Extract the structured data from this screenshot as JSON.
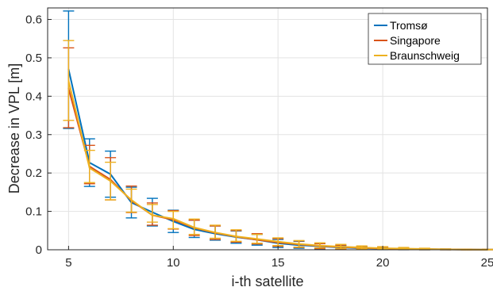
{
  "chart_data": {
    "type": "line",
    "xlabel": "i-th satellite",
    "ylabel": "Decrease in VPL [m]",
    "xlim": [
      4,
      25
    ],
    "ylim": [
      0,
      0.63
    ],
    "xticks": [
      5,
      10,
      15,
      20,
      25
    ],
    "yticks": [
      0,
      0.1,
      0.2,
      0.3,
      0.4,
      0.5,
      0.6
    ],
    "ytick_labels": [
      "0",
      "0.1",
      "0.2",
      "0.3",
      "0.4",
      "0.5",
      "0.6"
    ],
    "grid": true,
    "legend_position": "top-right",
    "x": [
      5,
      6,
      7,
      8,
      9,
      10,
      11,
      12,
      13,
      14,
      15,
      16,
      17,
      18,
      19,
      20,
      21,
      22,
      23,
      24,
      25
    ],
    "series": [
      {
        "name": "Tromsø",
        "color": "#0072BD",
        "values": [
          0.47,
          0.227,
          0.197,
          0.123,
          0.098,
          0.074,
          0.053,
          0.042,
          0.033,
          0.026,
          0.017,
          0.012,
          0.009,
          0.006,
          0.004,
          0.003,
          0.002,
          0.0015,
          0.001,
          0.0005,
          0.0003
        ],
        "err_low": [
          0.316,
          0.165,
          0.137,
          0.083,
          0.062,
          0.045,
          0.032,
          0.025,
          0.017,
          0.012,
          0.006,
          0.004,
          0.002,
          0.001,
          0.0005,
          0.0003,
          0.0002,
          0.0001,
          0.0001,
          0.0,
          0.0
        ],
        "err_high": [
          0.622,
          0.289,
          0.257,
          0.163,
          0.134,
          0.103,
          0.077,
          0.062,
          0.049,
          0.04,
          0.027,
          0.022,
          0.016,
          0.011,
          0.008,
          0.006,
          0.004,
          0.003,
          0.002,
          0.001,
          0.001
        ]
      },
      {
        "name": "Singapore",
        "color": "#D95319",
        "values": [
          0.42,
          0.217,
          0.183,
          0.128,
          0.09,
          0.078,
          0.057,
          0.044,
          0.034,
          0.026,
          0.019,
          0.014,
          0.01,
          0.007,
          0.005,
          0.003,
          0.002,
          0.0015,
          0.001,
          0.0005,
          0.0003
        ],
        "err_low": [
          0.318,
          0.172,
          0.13,
          0.097,
          0.064,
          0.054,
          0.037,
          0.027,
          0.02,
          0.015,
          0.009,
          0.006,
          0.003,
          0.002,
          0.001,
          0.0005,
          0.0003,
          0.0002,
          0.0001,
          0.0,
          0.0
        ],
        "err_high": [
          0.526,
          0.272,
          0.24,
          0.166,
          0.122,
          0.102,
          0.077,
          0.062,
          0.05,
          0.042,
          0.029,
          0.023,
          0.016,
          0.012,
          0.009,
          0.007,
          0.005,
          0.003,
          0.002,
          0.001,
          0.001
        ]
      },
      {
        "name": "Braunschweig",
        "color": "#EDB120",
        "values": [
          0.44,
          0.213,
          0.179,
          0.13,
          0.09,
          0.081,
          0.058,
          0.045,
          0.035,
          0.028,
          0.021,
          0.015,
          0.011,
          0.008,
          0.006,
          0.004,
          0.003,
          0.002,
          0.001,
          0.0005,
          0.0003
        ],
        "err_low": [
          0.337,
          0.175,
          0.13,
          0.098,
          0.072,
          0.055,
          0.04,
          0.03,
          0.022,
          0.017,
          0.011,
          0.007,
          0.005,
          0.003,
          0.002,
          0.001,
          0.0005,
          0.0003,
          0.0002,
          0.0001,
          0.0
        ],
        "err_high": [
          0.545,
          0.259,
          0.228,
          0.158,
          0.118,
          0.1,
          0.08,
          0.064,
          0.052,
          0.04,
          0.031,
          0.024,
          0.018,
          0.014,
          0.01,
          0.008,
          0.006,
          0.004,
          0.002,
          0.001,
          0.001
        ]
      }
    ]
  }
}
